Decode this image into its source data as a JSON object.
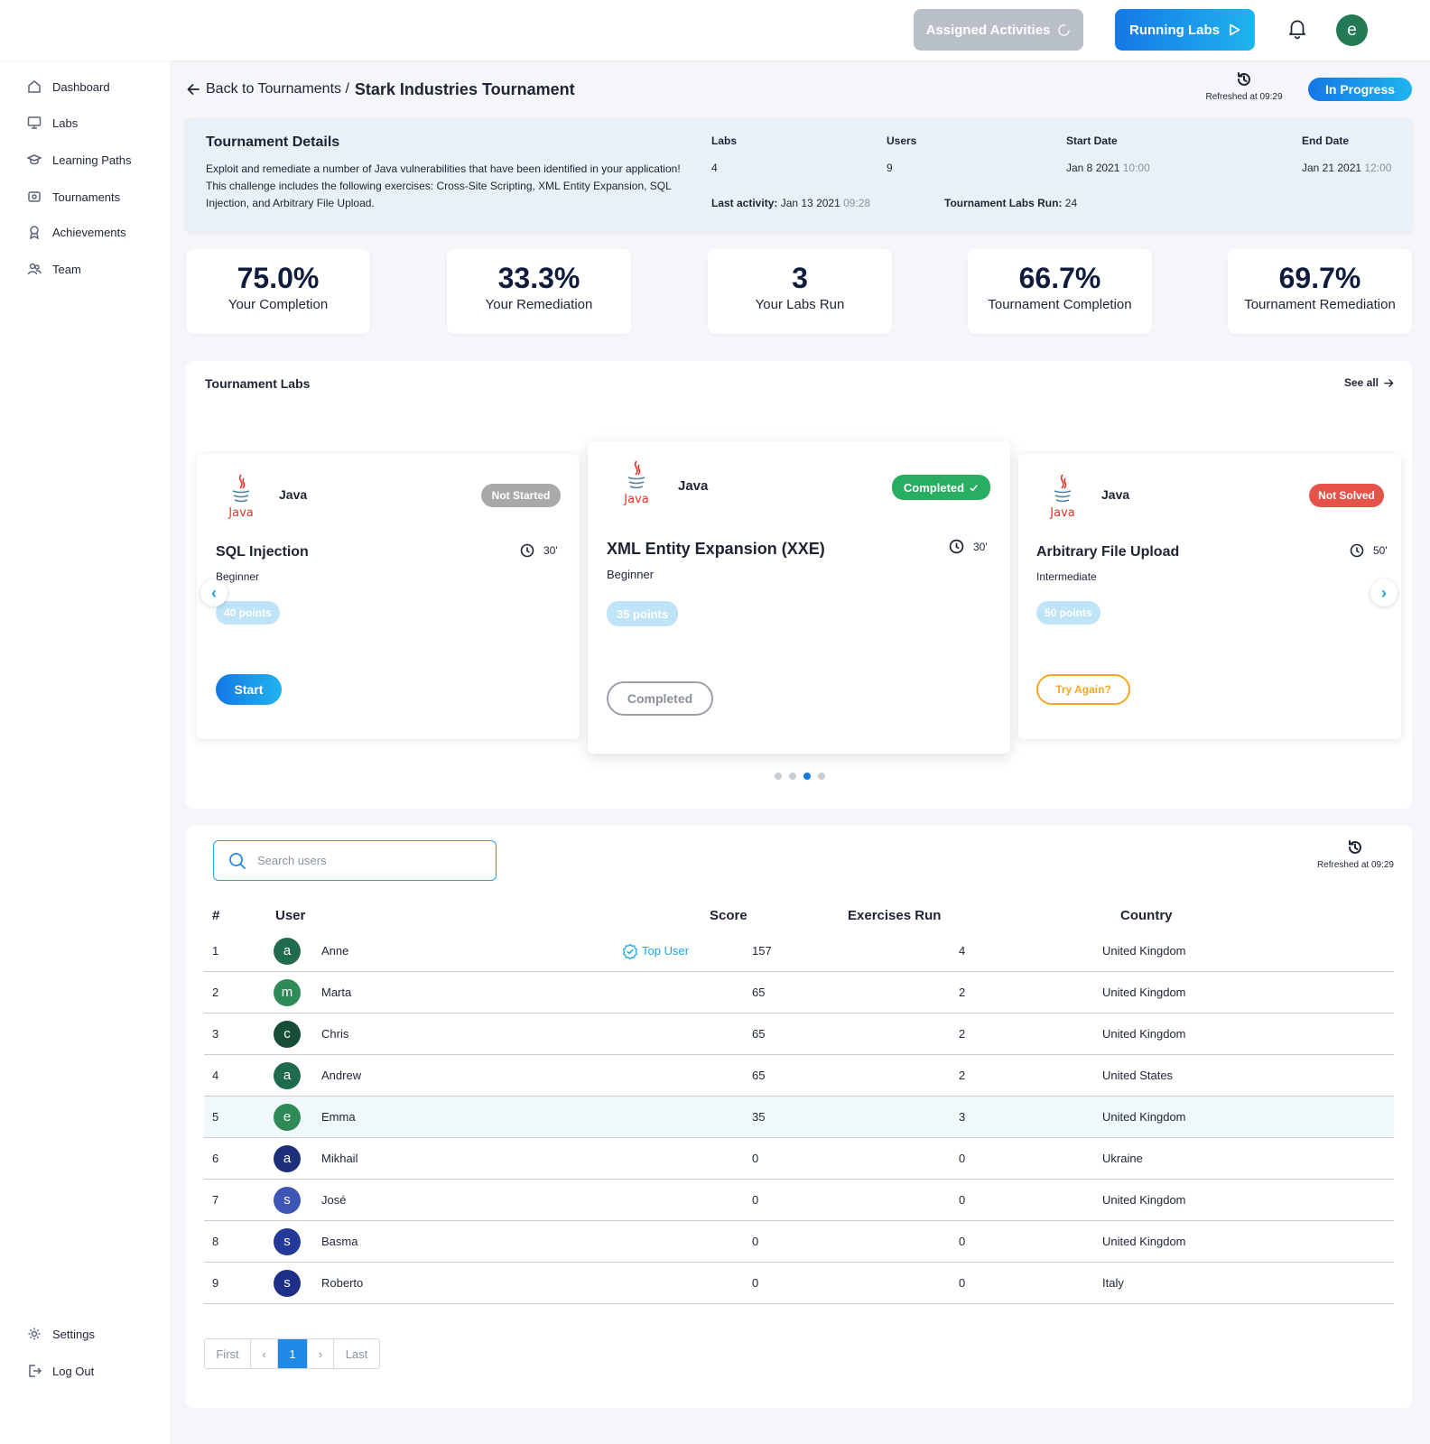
{
  "topbar": {
    "assigned_label": "Assigned Activities",
    "running_label": "Running Labs",
    "avatar_letter": "e",
    "avatar_color": "#237a55"
  },
  "sidebar": {
    "items": [
      {
        "label": "Dashboard",
        "icon": "home-icon"
      },
      {
        "label": "Labs",
        "icon": "monitor-icon"
      },
      {
        "label": "Learning Paths",
        "icon": "graduation-cap-icon"
      },
      {
        "label": "Tournaments",
        "icon": "tournament-icon"
      },
      {
        "label": "Achievements",
        "icon": "award-icon"
      },
      {
        "label": "Team",
        "icon": "team-icon"
      }
    ],
    "bottom": [
      {
        "label": "Settings",
        "icon": "gear-icon"
      },
      {
        "label": "Log Out",
        "icon": "logout-icon"
      }
    ]
  },
  "header": {
    "back_label": "Back to Tournaments /",
    "current": "Stark Industries Tournament",
    "refreshed": "Refreshed at 09:29",
    "status": "In Progress"
  },
  "details": {
    "title": "Tournament Details",
    "description": "Exploit and remediate a number of Java vulnerabilities that have been identified in your application! This challenge includes the following exercises: Cross-Site Scripting, XML Entity Expansion, SQL Injection, and Arbitrary File Upload.",
    "labs_label": "Labs",
    "labs_value": "4",
    "users_label": "Users",
    "users_value": "9",
    "start_label": "Start Date",
    "start_date": "Jan 8 2021",
    "start_time": "10:00",
    "end_label": "End Date",
    "end_date": "Jan 21 2021",
    "end_time": "12:00",
    "last_activity_label": "Last activity:",
    "last_activity_date": "Jan 13 2021",
    "last_activity_time": "09:28",
    "labs_run_label": "Tournament Labs Run:",
    "labs_run_value": "24"
  },
  "stats": [
    {
      "value": "75.0%",
      "label": "Your Completion"
    },
    {
      "value": "33.3%",
      "label": "Your Remediation"
    },
    {
      "value": "3",
      "label": "Your Labs Run"
    },
    {
      "value": "66.7%",
      "label": "Tournament Completion"
    },
    {
      "value": "69.7%",
      "label": "Tournament Remediation"
    }
  ],
  "labs": {
    "title": "Tournament Labs",
    "see_all": "See all",
    "cards": [
      {
        "lang": "Java",
        "status": "Not Started",
        "status_color": "#a9a9a9",
        "title": "SQL Injection",
        "duration": "30'",
        "level": "Beginner",
        "points": "40 points",
        "action": "Start"
      },
      {
        "lang": "Java",
        "status": "Completed",
        "status_color": "#27ae60",
        "title": "XML Entity Expansion (XXE)",
        "duration": "30'",
        "level": "Beginner",
        "points": "35 points",
        "action": "Completed"
      },
      {
        "lang": "Java",
        "status": "Not Solved",
        "status_color": "#e5534b",
        "title": "Arbitrary File Upload",
        "duration": "50'",
        "level": "Intermediate",
        "points": "50 points",
        "action": "Try Again?"
      }
    ],
    "java_logo_text": "Java",
    "carousel_page": 3,
    "carousel_pages": 4
  },
  "users": {
    "search_placeholder": "Search users",
    "refreshed": "Refreshed at 09:29",
    "columns": [
      "#",
      "User",
      "Score",
      "Exercises Run",
      "Country"
    ],
    "top_user_label": "Top User",
    "rows": [
      {
        "rank": "1",
        "letter": "a",
        "color": "#1f6b4c",
        "name": "Anne",
        "top": true,
        "score": "157",
        "runs": "4",
        "country": "United Kingdom"
      },
      {
        "rank": "2",
        "letter": "m",
        "color": "#2e8b57",
        "name": "Marta",
        "top": false,
        "score": "65",
        "runs": "2",
        "country": "United Kingdom"
      },
      {
        "rank": "3",
        "letter": "c",
        "color": "#164d36",
        "name": "Chris",
        "top": false,
        "score": "65",
        "runs": "2",
        "country": "United Kingdom"
      },
      {
        "rank": "4",
        "letter": "a",
        "color": "#1f6b4c",
        "name": "Andrew",
        "top": false,
        "score": "65",
        "runs": "2",
        "country": "United States"
      },
      {
        "rank": "5",
        "letter": "e",
        "color": "#2e8b57",
        "name": "Emma",
        "top": false,
        "score": "35",
        "runs": "3",
        "country": "United Kingdom"
      },
      {
        "rank": "6",
        "letter": "a",
        "color": "#1e2f7a",
        "name": "Mikhail",
        "top": false,
        "score": "0",
        "runs": "0",
        "country": "Ukraine"
      },
      {
        "rank": "7",
        "letter": "s",
        "color": "#3d55b5",
        "name": "José",
        "top": false,
        "score": "0",
        "runs": "0",
        "country": "United Kingdom"
      },
      {
        "rank": "8",
        "letter": "s",
        "color": "#243a9a",
        "name": "Basma",
        "top": false,
        "score": "0",
        "runs": "0",
        "country": "United Kingdom"
      },
      {
        "rank": "9",
        "letter": "s",
        "color": "#1e2f8a",
        "name": "Roberto",
        "top": false,
        "score": "0",
        "runs": "0",
        "country": "Italy"
      }
    ],
    "highlighted_rank": "5",
    "pager": {
      "first": "First",
      "prev": "‹",
      "current": "1",
      "next": "›",
      "last": "Last"
    }
  }
}
